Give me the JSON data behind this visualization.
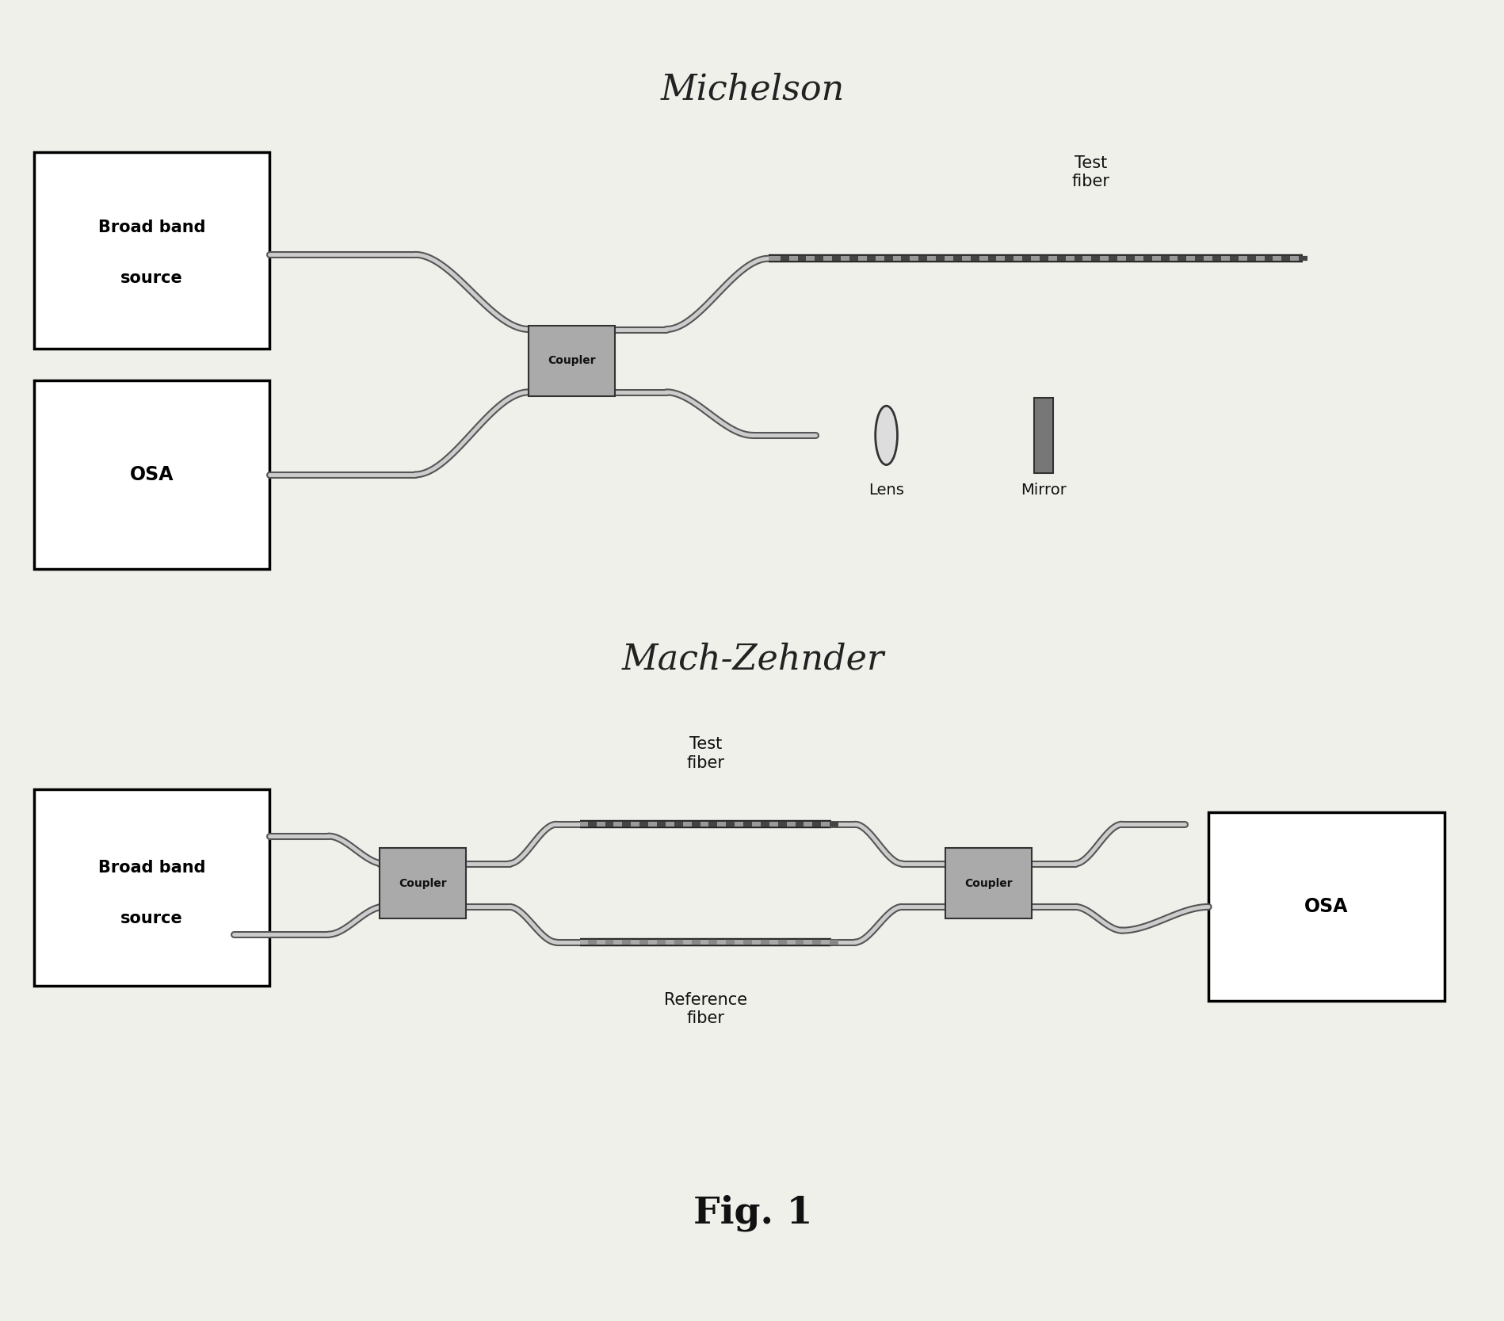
{
  "bg_color": "#f0f0eb",
  "title_michelson": "Michelson",
  "title_mach": "Mach-Zehnder",
  "fig_label": "Fig. 1",
  "box_color": "#ffffff",
  "box_edge": "#000000",
  "fiber_out_color": "#555555",
  "fiber_in_color": "#cccccc",
  "coupler_color": "#aaaaaa",
  "test_fiber_dark": "#333333",
  "test_fiber_mid": "#777777",
  "lw_out": 6.5,
  "lw_in": 3.5,
  "lw_test_out": 7.0,
  "lw_test_in": 4.0
}
